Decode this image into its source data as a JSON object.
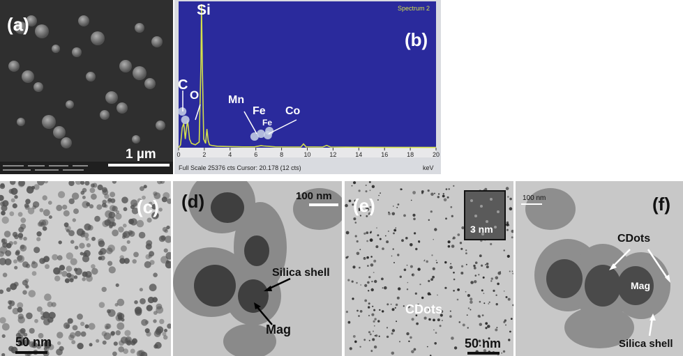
{
  "panels": {
    "a": {
      "label": "(a)",
      "scale": "1 µm"
    },
    "b": {
      "label": "(b)",
      "spectrum_title": "Spectrum 2",
      "footer_left": "Full Scale 25376 cts Cursor: 20.178  (12 cts)",
      "footer_unit": "keV",
      "element_labels": [
        "Si",
        "C",
        "O",
        "Mn",
        "Fe",
        "Fe",
        "Co"
      ]
    },
    "c": {
      "label": "(c)",
      "scale": "50 nm"
    },
    "d": {
      "label": "(d)",
      "scale": "100 nm",
      "shell": "Silica shell",
      "mag": "Mag"
    },
    "e": {
      "label": "(e)",
      "inset_scale": "3 nm",
      "cdots": "CDots",
      "scale": "50 nm"
    },
    "f": {
      "label": "(f)",
      "scale": "100 nm",
      "cdots": "CDots",
      "mag": "Mag",
      "shell": "Silica shell"
    }
  },
  "chart_data": {
    "type": "line",
    "title": "Spectrum 2",
    "xlabel": "keV",
    "xlim": [
      0,
      20
    ],
    "x_ticks": [
      0,
      2,
      4,
      6,
      8,
      10,
      12,
      14,
      16,
      18,
      20
    ],
    "series": [
      {
        "x": [
          0,
          0.15,
          0.28,
          0.4,
          0.52,
          0.6,
          0.7,
          0.85,
          1.0,
          1.3,
          1.6,
          1.74,
          1.78,
          1.85,
          1.95,
          2.1,
          2.2,
          2.3,
          2.4,
          2.6,
          3.0,
          4.0,
          5.0,
          5.9,
          6.4,
          6.6,
          7.0,
          7.5,
          8.5,
          9.5,
          9.7,
          9.9,
          11.2,
          11.5,
          11.8,
          13,
          16,
          20
        ],
        "y": [
          0,
          2,
          14,
          17,
          6,
          13,
          19,
          6,
          3,
          2,
          4,
          60,
          100,
          55,
          6,
          3,
          13,
          5,
          2,
          1.5,
          1,
          0.8,
          0.6,
          0.6,
          1.4,
          1.2,
          0.9,
          0.6,
          0.5,
          0.5,
          2.6,
          0.6,
          0.5,
          1.6,
          0.5,
          0.4,
          0.3,
          0.2
        ]
      }
    ],
    "peaks": [
      {
        "element": "C",
        "x": 0.28
      },
      {
        "element": "O",
        "x": 0.52
      },
      {
        "element": "Si",
        "x": 1.78
      },
      {
        "element": "Mn",
        "x": 5.9
      },
      {
        "element": "Fe",
        "x": 6.4
      },
      {
        "element": "Fe",
        "x": 7.05
      },
      {
        "element": "Co",
        "x": 6.93
      }
    ],
    "colors": {
      "background": "#2a2a9c",
      "trace": "#d4e04a",
      "marker": "#c9d4e8"
    }
  }
}
